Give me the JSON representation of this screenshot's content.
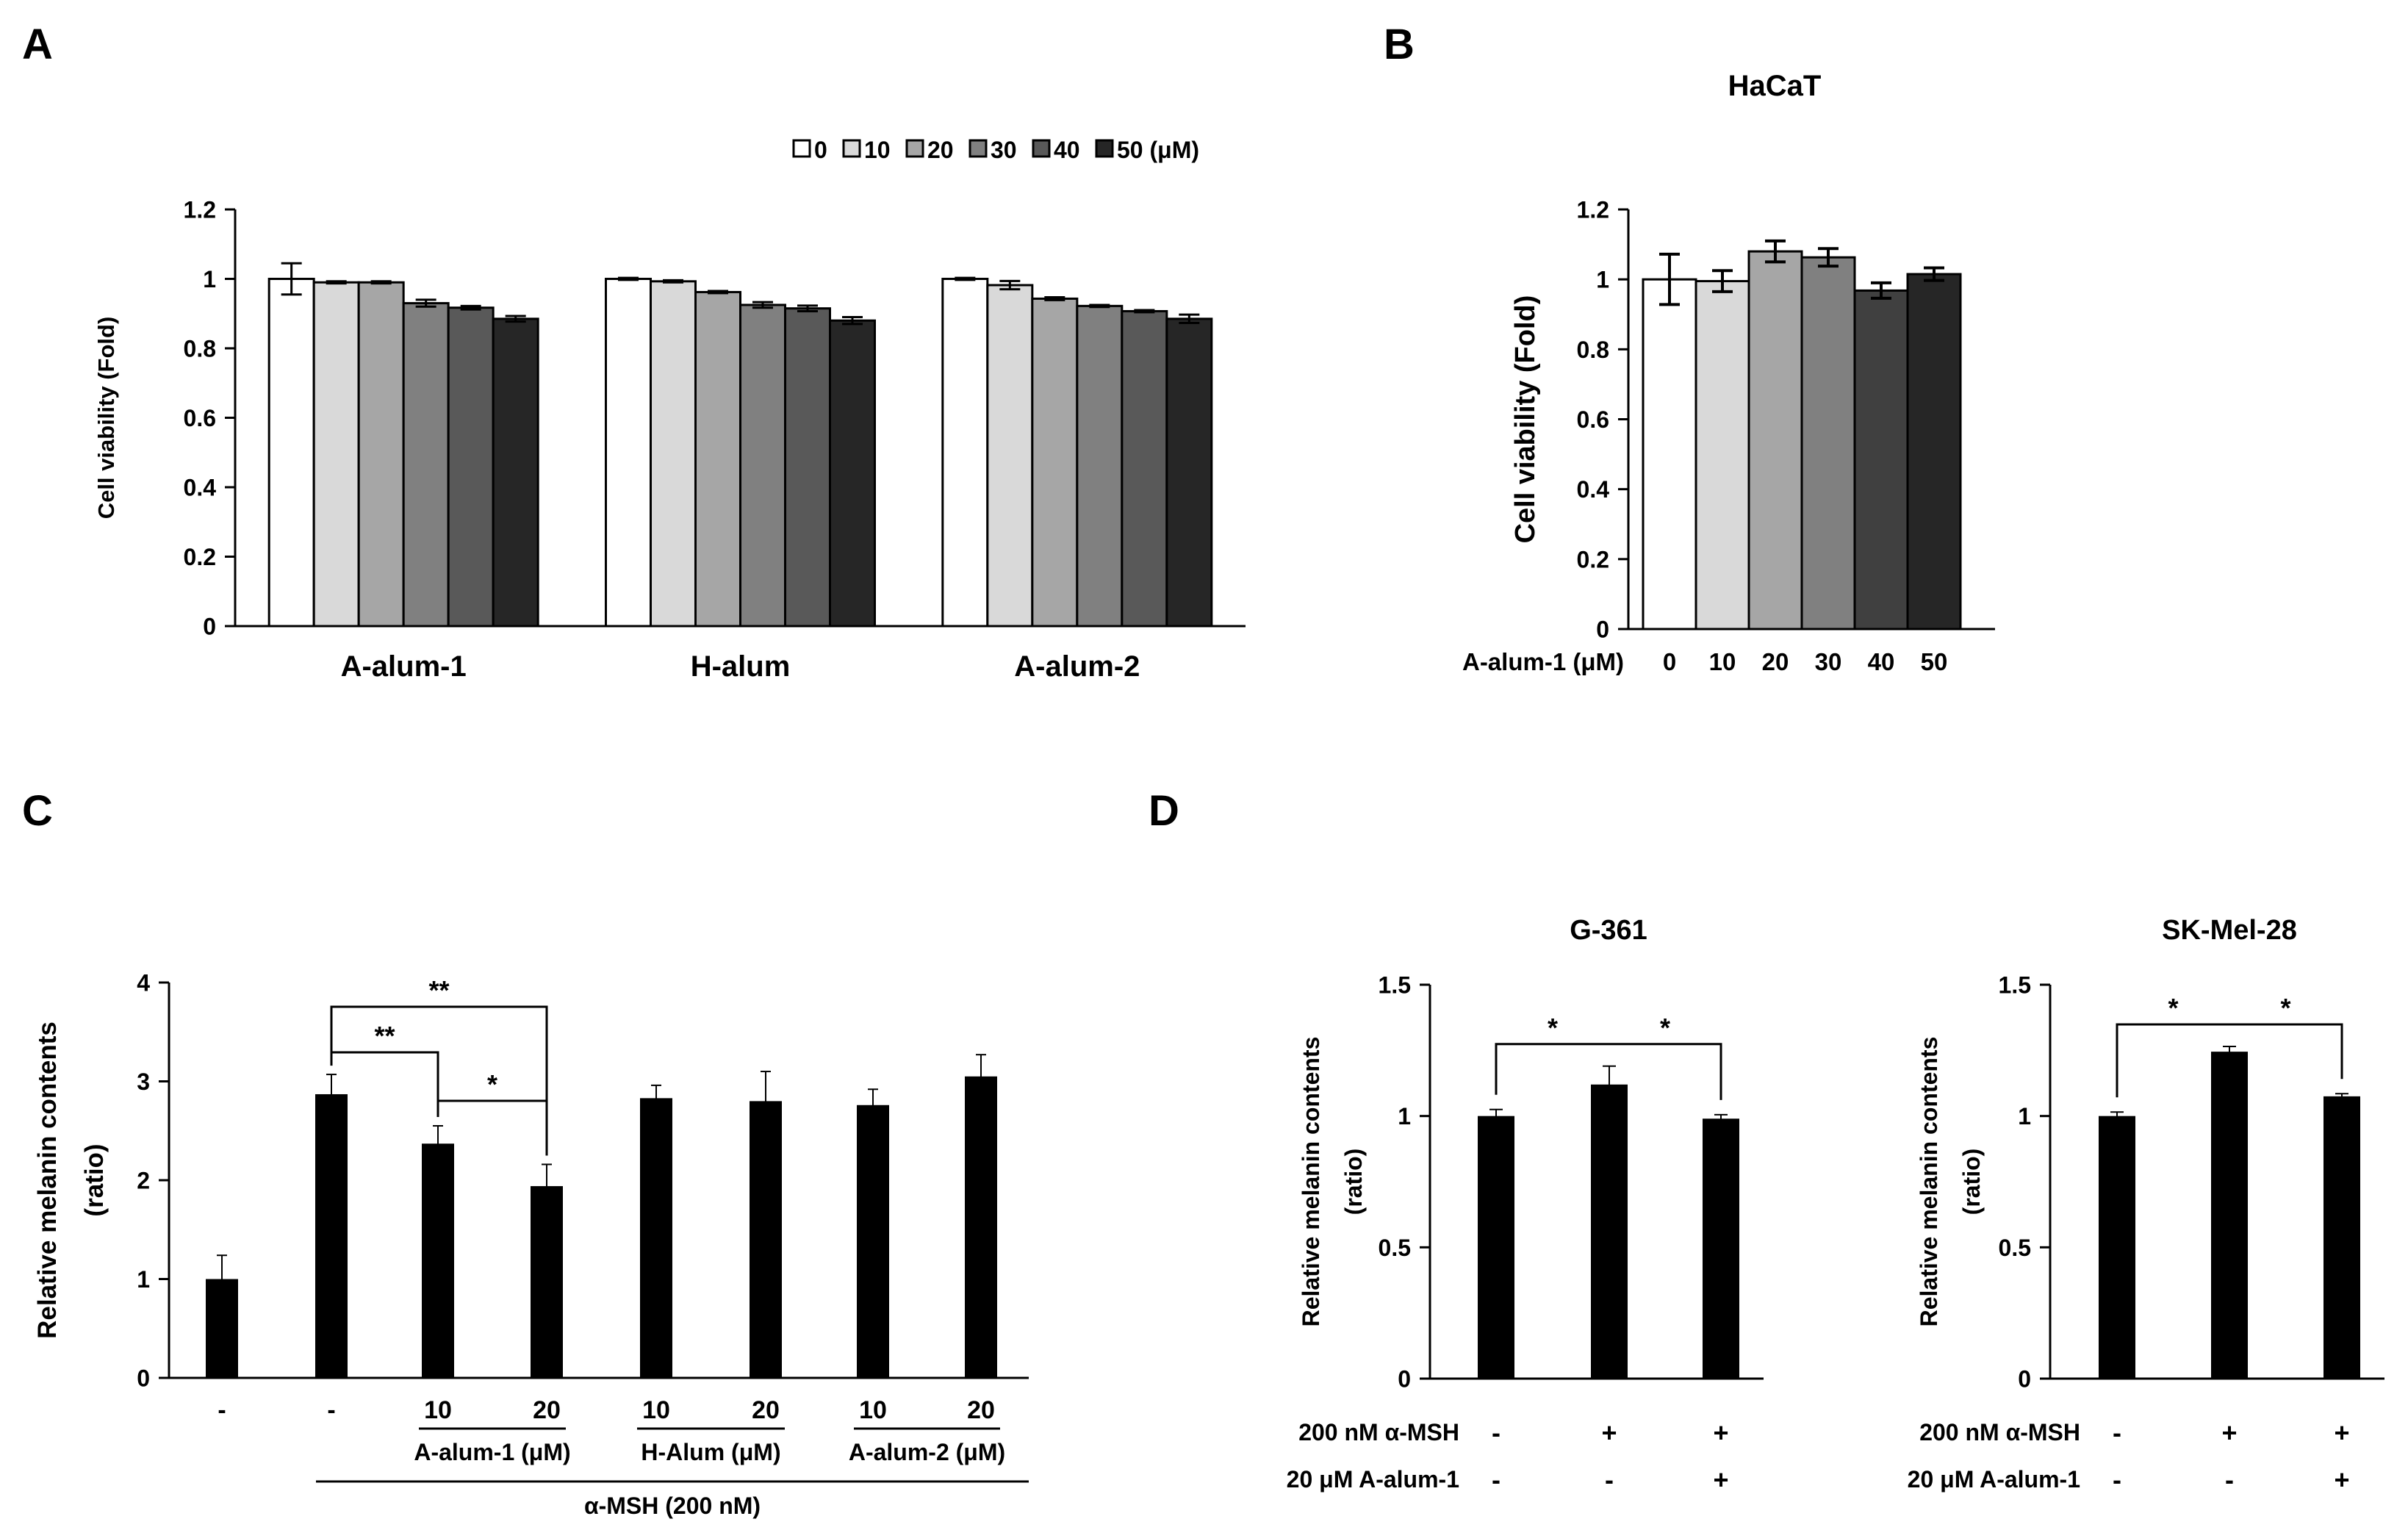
{
  "panel_labels": {
    "a": "A",
    "b": "B",
    "c": "C",
    "d": "D"
  },
  "chart_data": [
    {
      "id": "A",
      "type": "bar",
      "title": "",
      "xlabel": "",
      "ylabel": "Cell viability (Fold)",
      "ylim": [
        0,
        1.2
      ],
      "yticks": [
        "0",
        "0.2",
        "0.4",
        "0.6",
        "0.8",
        "1",
        "1.2"
      ],
      "categories": [
        "A-alum-1",
        "H-alum",
        "A-alum-2"
      ],
      "legend": {
        "placement": "top-right",
        "labels": [
          "0",
          "10",
          "20",
          "30",
          "40",
          "50 (μM)"
        ]
      },
      "series": [
        {
          "name": "0",
          "color": "#ffffff",
          "values": [
            1.0,
            1.0,
            1.0
          ],
          "errors": [
            0.045,
            0.003,
            0.003
          ]
        },
        {
          "name": "10",
          "color": "#d9d9d9",
          "values": [
            0.99,
            0.993,
            0.982
          ],
          "errors": [
            0.003,
            0.003,
            0.012
          ]
        },
        {
          "name": "20",
          "color": "#a6a6a6",
          "values": [
            0.99,
            0.962,
            0.943
          ],
          "errors": [
            0.003,
            0.003,
            0.004
          ]
        },
        {
          "name": "30",
          "color": "#808080",
          "values": [
            0.93,
            0.925,
            0.922
          ],
          "errors": [
            0.01,
            0.008,
            0.003
          ]
        },
        {
          "name": "40",
          "color": "#595959",
          "values": [
            0.917,
            0.915,
            0.907
          ],
          "errors": [
            0.005,
            0.008,
            0.003
          ]
        },
        {
          "name": "50",
          "color": "#262626",
          "values": [
            0.885,
            0.88,
            0.885
          ],
          "errors": [
            0.008,
            0.01,
            0.012
          ]
        }
      ]
    },
    {
      "id": "B",
      "type": "bar",
      "title": "HaCaT",
      "xlabel": "A-alum-1 (μM)",
      "ylabel": "Cell viability (Fold)",
      "ylim": [
        0,
        1.2
      ],
      "yticks": [
        "0",
        "0.2",
        "0.4",
        "0.6",
        "0.8",
        "1",
        "1.2"
      ],
      "categories": [
        "0",
        "10",
        "20",
        "30",
        "40",
        "50"
      ],
      "values": [
        1.0,
        0.995,
        1.08,
        1.063,
        0.968,
        1.015
      ],
      "errors": [
        0.072,
        0.03,
        0.03,
        0.025,
        0.022,
        0.018
      ],
      "colors": [
        "#ffffff",
        "#d9d9d9",
        "#a6a6a6",
        "#808080",
        "#404040",
        "#262626"
      ]
    },
    {
      "id": "C",
      "type": "bar",
      "title": "",
      "xlabel": "α-MSH (200 nM)",
      "ylabel": "Relative melanin contents",
      "ylabel2": "(ratio)",
      "ylim": [
        0,
        4
      ],
      "yticks": [
        "0",
        "1",
        "2",
        "3",
        "4"
      ],
      "categories": [
        "-",
        "-",
        "10",
        "20",
        "10",
        "20",
        "10",
        "20"
      ],
      "group_labels": [
        "A-alum-1 (μM)",
        "H-Alum (μM)",
        "A-alum-2 (μM)"
      ],
      "values": [
        1.0,
        2.87,
        2.37,
        1.94,
        2.83,
        2.8,
        2.76,
        3.05
      ],
      "errors": [
        0.24,
        0.2,
        0.18,
        0.22,
        0.13,
        0.3,
        0.16,
        0.22
      ],
      "significance": [
        {
          "from": 1,
          "to": 2,
          "label": "**"
        },
        {
          "from": 1,
          "to": 3,
          "label": "**"
        },
        {
          "from": 2,
          "to": 3,
          "label": "*"
        }
      ]
    },
    {
      "id": "D1",
      "type": "bar",
      "title": "G-361",
      "ylabel": "Relative melanin contents",
      "ylabel2": "(ratio)",
      "ylim": [
        0,
        1.5
      ],
      "yticks": [
        "0",
        "0.5",
        "1",
        "1.5"
      ],
      "row_labels": [
        "200 nM α-MSH",
        "20 μM A-alum-1"
      ],
      "row1": [
        "-",
        "+",
        "+"
      ],
      "row2": [
        "-",
        "-",
        "+"
      ],
      "values": [
        1.0,
        1.12,
        0.99
      ],
      "errors": [
        0.025,
        0.07,
        0.015
      ],
      "significance": [
        {
          "from": 0,
          "to": 1,
          "label": "*"
        },
        {
          "from": 1,
          "to": 2,
          "label": "*"
        }
      ]
    },
    {
      "id": "D2",
      "type": "bar",
      "title": "SK-Mel-28",
      "ylabel": "Relative melanin contents",
      "ylabel2": "(ratio)",
      "ylim": [
        0,
        1.5
      ],
      "yticks": [
        "0",
        "0.5",
        "1",
        "1.5"
      ],
      "row_labels": [
        "200 nM α-MSH",
        "20 μM A-alum-1"
      ],
      "row1": [
        "-",
        "+",
        "+"
      ],
      "row2": [
        "-",
        "-",
        "+"
      ],
      "values": [
        1.0,
        1.245,
        1.075
      ],
      "errors": [
        0.015,
        0.02,
        0.01
      ],
      "significance": [
        {
          "from": 0,
          "to": 1,
          "label": "*"
        },
        {
          "from": 1,
          "to": 2,
          "label": "*"
        }
      ]
    }
  ]
}
